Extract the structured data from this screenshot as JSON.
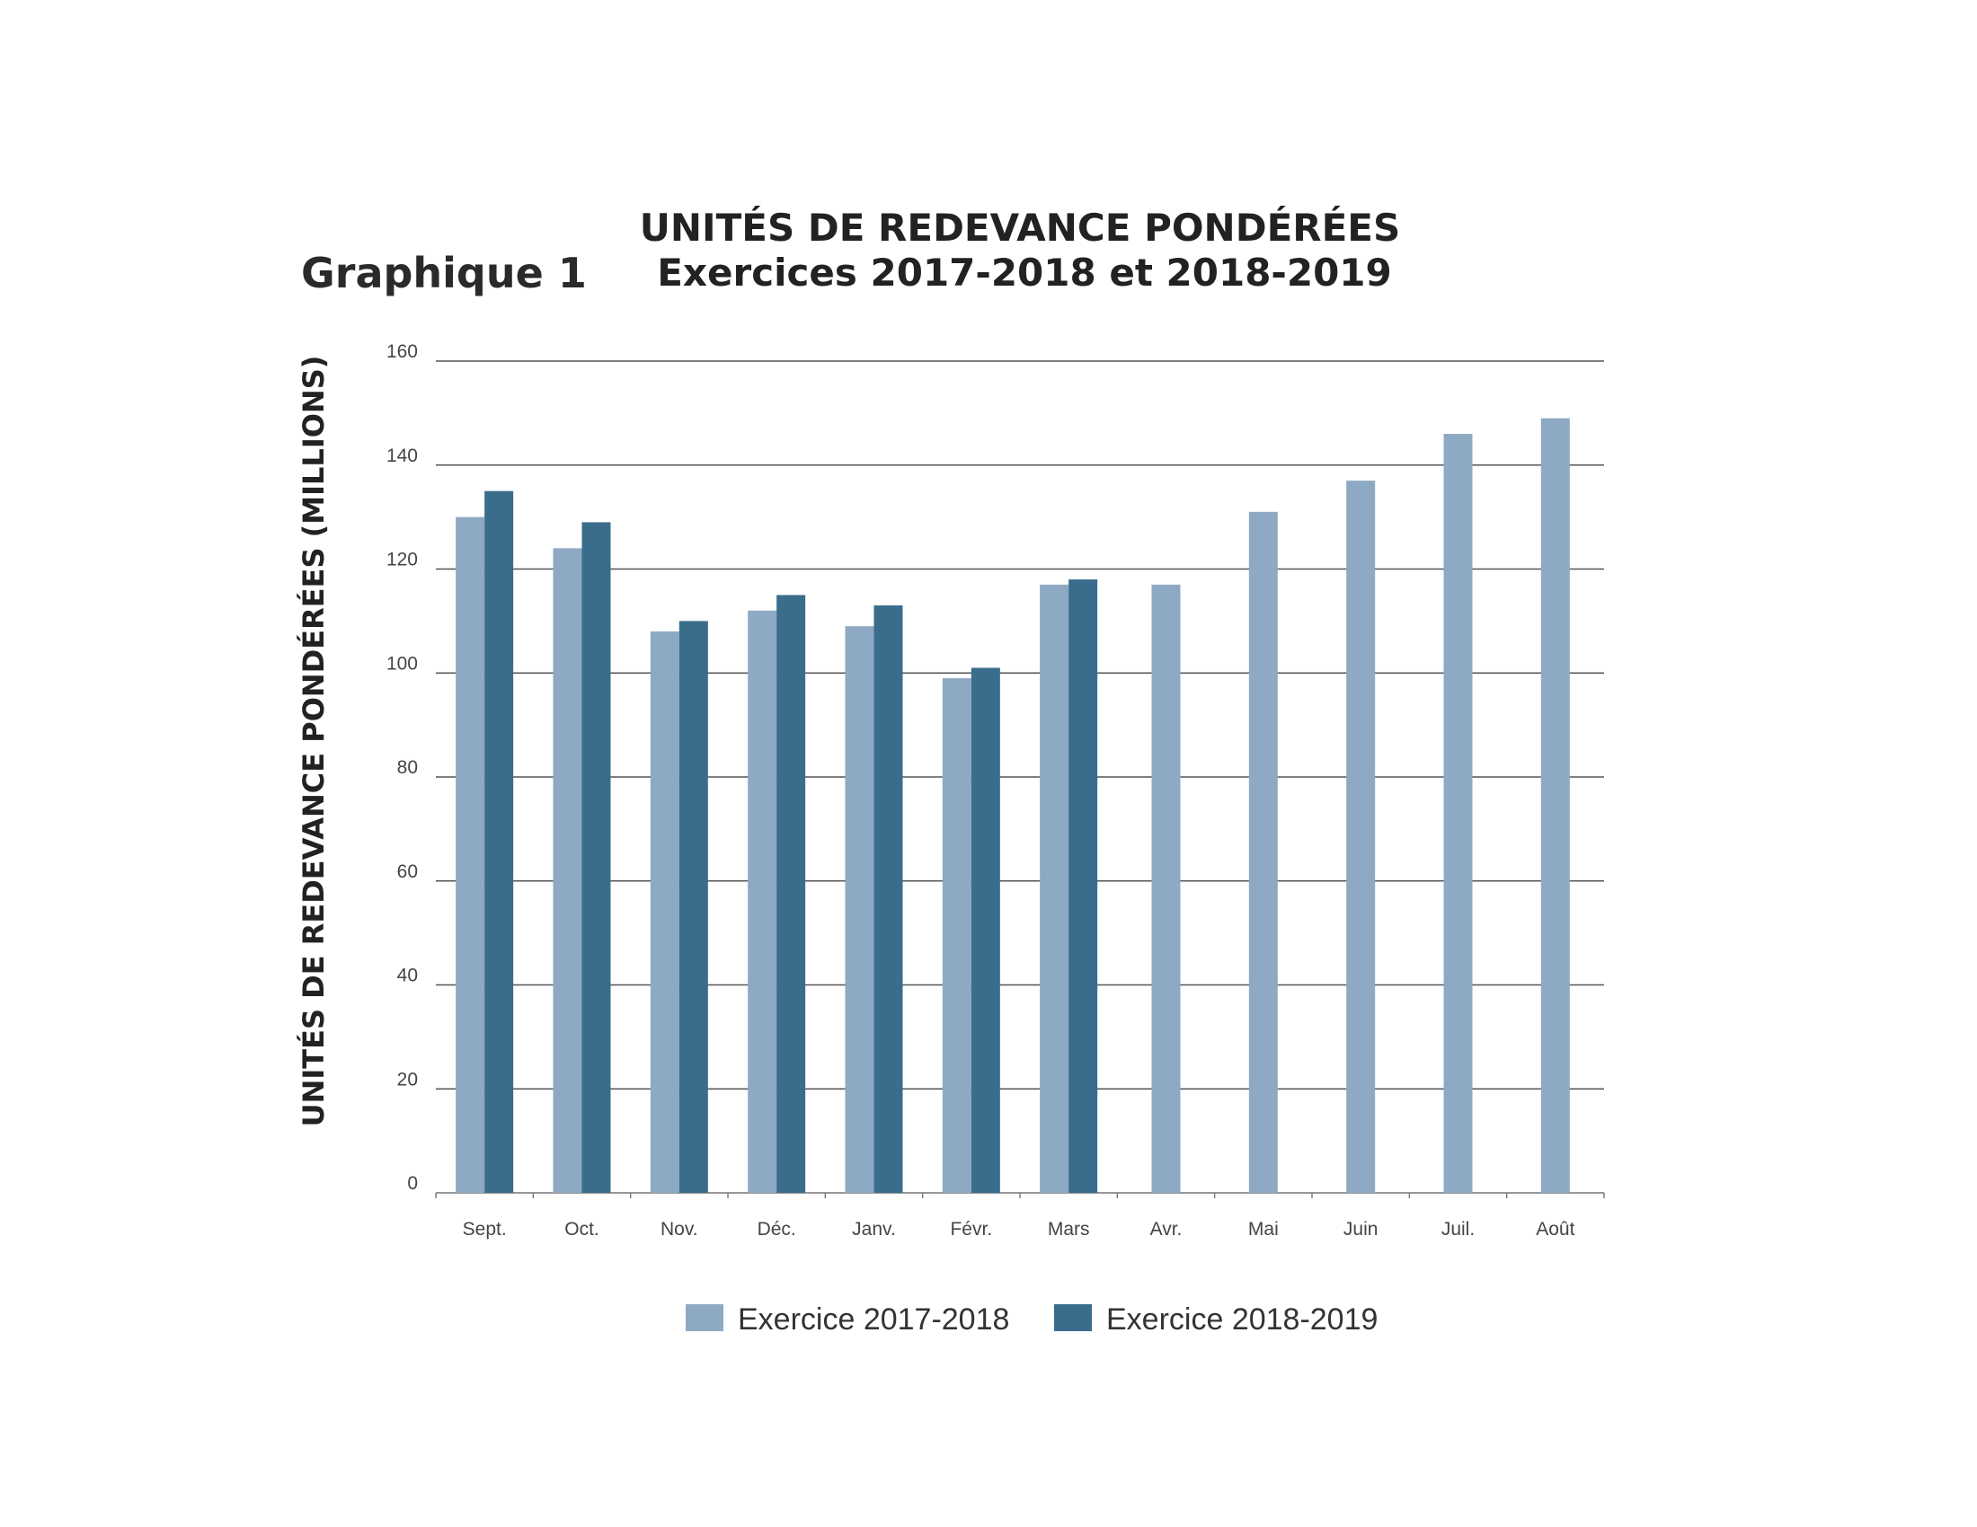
{
  "figure_label": "Graphique 1",
  "chart_data": {
    "type": "bar",
    "title": "UNITÉS DE REDEVANCE PONDÉRÉES",
    "subtitle": "Exercices 2017-2018 et 2018-2019",
    "xlabel": "",
    "ylabel": "UNITÉS DE REDEVANCE PONDÉRÉES (MILLIONS)",
    "ylim": [
      0,
      160
    ],
    "yticks": [
      "0",
      "20",
      "40",
      "60",
      "80",
      "100",
      "120",
      "140",
      "160"
    ],
    "categories": [
      "Sept.",
      "Oct.",
      "Nov.",
      "Déc.",
      "Janv.",
      "Févr.",
      "Mars",
      "Avr.",
      "Mai",
      "Juin",
      "Juil.",
      "Août"
    ],
    "series": [
      {
        "name": "Exercice 2017-2018",
        "color": "#8ea9c3",
        "values": [
          130,
          124,
          108,
          112,
          109,
          99,
          117,
          117,
          131,
          137,
          146,
          149
        ]
      },
      {
        "name": "Exercice 2018-2019",
        "color": "#3a6d8c",
        "values": [
          135,
          129,
          110,
          115,
          113,
          101,
          118,
          null,
          null,
          null,
          null,
          null
        ]
      }
    ],
    "grid": true,
    "legend_position": "bottom"
  }
}
